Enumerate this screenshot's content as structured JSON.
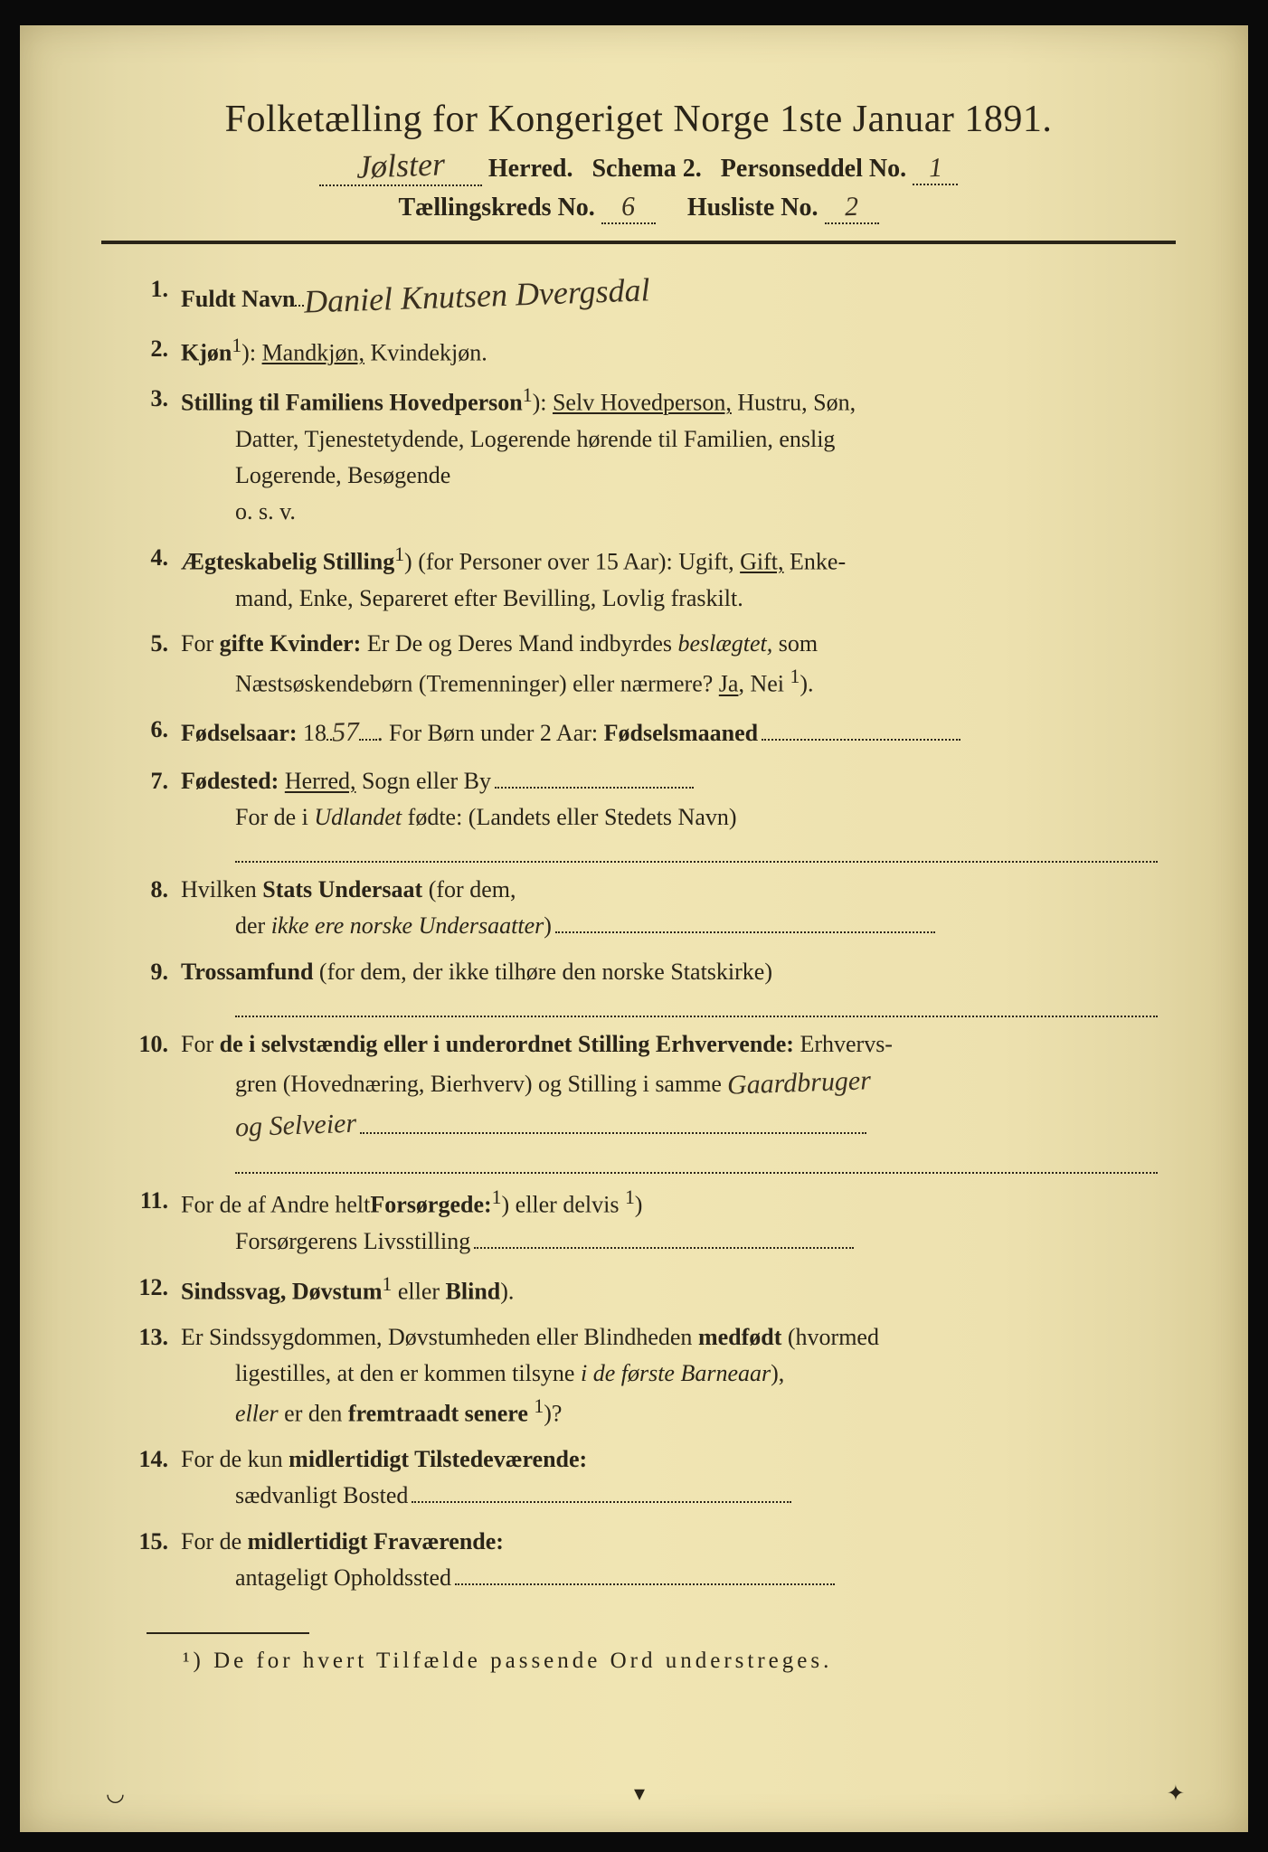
{
  "colors": {
    "paper_bg": "#ede1b0",
    "ink": "#2a2418",
    "handwriting": "#3a3020",
    "frame": "#000000"
  },
  "typography": {
    "title_fontsize": 42,
    "body_fontsize": 26,
    "handwriting_family": "Brush Script MT"
  },
  "header": {
    "title": "Folketælling for Kongeriget Norge 1ste Januar 1891.",
    "herred_hw": "Jølster",
    "line2_a": "Herred.",
    "line2_b": "Schema 2.",
    "line2_c": "Personseddel No.",
    "personseddel_no_hw": "1",
    "line3_a": "Tællingskreds No.",
    "kreds_no_hw": "6",
    "line3_b": "Husliste No.",
    "husliste_no_hw": "2"
  },
  "items": [
    {
      "n": "1.",
      "label": "Fuldt Navn",
      "hw": "Daniel Knutsen Dvergsdal"
    },
    {
      "n": "2.",
      "label": "Kjøn",
      "sup": "1",
      "rest": "): ",
      "under": "Mandkjøn,",
      "tail": " Kvindekjøn."
    },
    {
      "n": "3.",
      "label": "Stilling til Familiens Hovedperson",
      "sup": "1",
      "rest": "): ",
      "under": "Selv Hovedperson,",
      "tail": " Hustru, Søn,",
      "cont": [
        "Datter, Tjenestetydende, Logerende hørende til Familien, enslig",
        "Logerende, Besøgende",
        "o. s. v."
      ]
    },
    {
      "n": "4.",
      "label": "Ægteskabelig Stilling",
      "sup": "1",
      "rest": ") (for Personer over 15 Aar): Ugift, ",
      "under": "Gift,",
      "tail": " Enke-",
      "cont": [
        "mand, Enke, Separeret efter Bevilling, Lovlig fraskilt."
      ]
    },
    {
      "n": "5.",
      "pre": "For ",
      "label": "gifte Kvinder:",
      "rest": " Er De og Deres Mand indbyrdes ",
      "italic": "beslægtet,",
      "tail": " som",
      "cont_html": "Næstsøskendebørn (Tremenninger) eller nærmere? <span class='under'>Ja</span>, Nei <sup>1</sup>)."
    },
    {
      "n": "6.",
      "label": "Fødselsaar:",
      "rest": " 18",
      "hw_inline": "57",
      "mid": ".  For Børn under 2 Aar: ",
      "label2": "Fødselsmaaned",
      "dots_after": true
    },
    {
      "n": "7.",
      "label": "Fødested:",
      "rest": " ",
      "under": "Herred,",
      "tail": " Sogn eller By",
      "dots_after": true,
      "cont_html": "For de i <span class='italic'>Udlandet</span> fødte: (Landets eller Stedets Navn)",
      "blank_line": true
    },
    {
      "n": "8.",
      "rest_pre": "Hvilken ",
      "label": "Stats Undersaat",
      "rest": " (for dem,",
      "cont_html": "der <span class='italic'>ikke ere norske Undersaatter</span>)",
      "cont_dots": true
    },
    {
      "n": "9.",
      "label": "Trossamfund",
      "rest": "  (for  dem,  der  ikke  tilhøre  den  norske  Statskirke)",
      "blank_line": true
    },
    {
      "n": "10.",
      "pre": "For ",
      "label": "de i selvstændig eller i underordnet Stilling Erhvervende:",
      "rest": " Erhvervs-",
      "cont_html": "gren (Hovednæring, Bierhverv) og Stilling i samme",
      "hw_cont": "Gaardbruger",
      "hw_cont2": "og Selveier",
      "blank_line": true
    },
    {
      "n": "11.",
      "rest_pre": "For de af Andre helt",
      "sup": "1",
      "rest": ") eller delvis ",
      "sup2": "1",
      "rest2": ") ",
      "label": "Forsørgede:",
      "cont_html": "Forsørgerens Livsstilling",
      "cont_dots": true
    },
    {
      "n": "12.",
      "label": "Sindssvag, Døvstum",
      "rest": " eller ",
      "label2": "Blind",
      "sup": "1",
      "tail": ")."
    },
    {
      "n": "13.",
      "rest_pre": "Er Sindssygdommen, Døvstumheden eller Blindheden ",
      "label": "medfødt",
      "rest": " (hvormed",
      "cont": [
        "ligestilles, at den er kommen tilsyne <span class='italic'>i de første Barneaar</span>),"
      ],
      "cont2_html": "<span class='italic'>eller</span> er den <span class='bold'>fremtraadt senere</span> <sup>1</sup>)?"
    },
    {
      "n": "14.",
      "pre": "For de kun ",
      "label": "midlertidigt Tilstedeværende:",
      "cont_html": "sædvanligt Bosted",
      "cont_dots": true
    },
    {
      "n": "15.",
      "pre": "For de ",
      "label": "midlertidigt Fraværende:",
      "cont_html": "antageligt Opholdssted",
      "cont_dots": true
    }
  ],
  "footnote": {
    "marker": "¹)",
    "text": " De for hvert Tilfælde passende Ord understreges."
  }
}
